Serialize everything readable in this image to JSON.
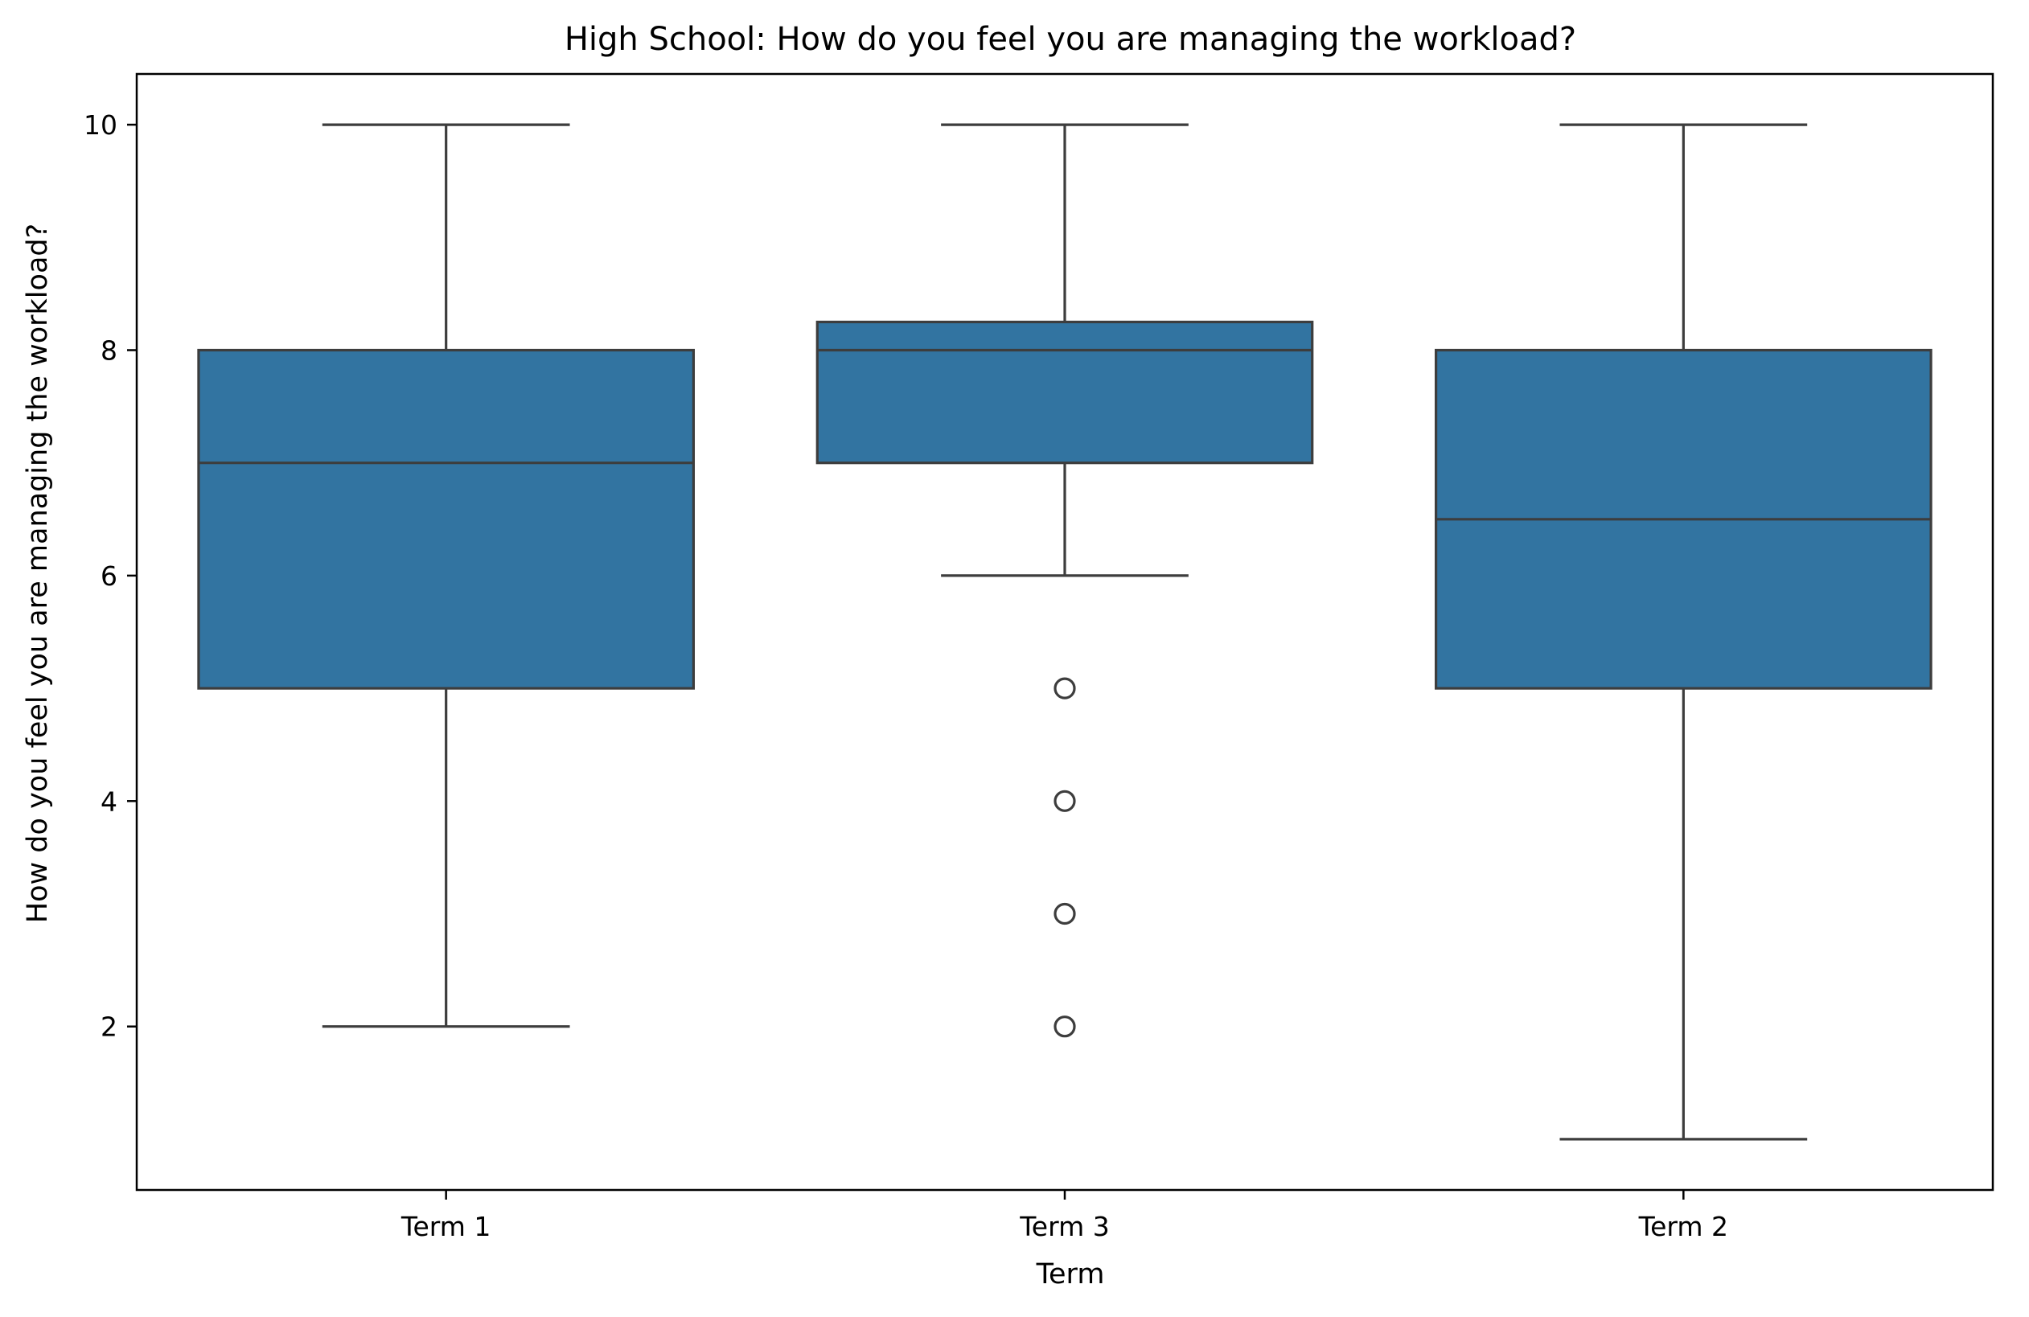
{
  "chart_data": {
    "type": "box",
    "title": "High School: How do you feel you are managing the workload?",
    "xlabel": "Term",
    "ylabel": "How do you feel you are managing the workload?",
    "ylim": [
      0.55,
      10.45
    ],
    "yticks": [
      2,
      4,
      6,
      8,
      10
    ],
    "grid": false,
    "legend": "none",
    "box_color": "#3274a1",
    "line_color": "#3d3d3d",
    "categories": [
      "Term 1",
      "Term 3",
      "Term 2"
    ],
    "boxes": [
      {
        "category": "Term 1",
        "whisker_low": 2,
        "q1": 5,
        "median": 7,
        "q3": 8,
        "whisker_high": 10,
        "outliers": []
      },
      {
        "category": "Term 3",
        "whisker_low": 6,
        "q1": 7,
        "median": 8,
        "q3": 8.25,
        "whisker_high": 10,
        "outliers": [
          5,
          4,
          3,
          2
        ]
      },
      {
        "category": "Term 2",
        "whisker_low": 1,
        "q1": 5,
        "median": 6.5,
        "q3": 8,
        "whisker_high": 10,
        "outliers": []
      }
    ]
  }
}
